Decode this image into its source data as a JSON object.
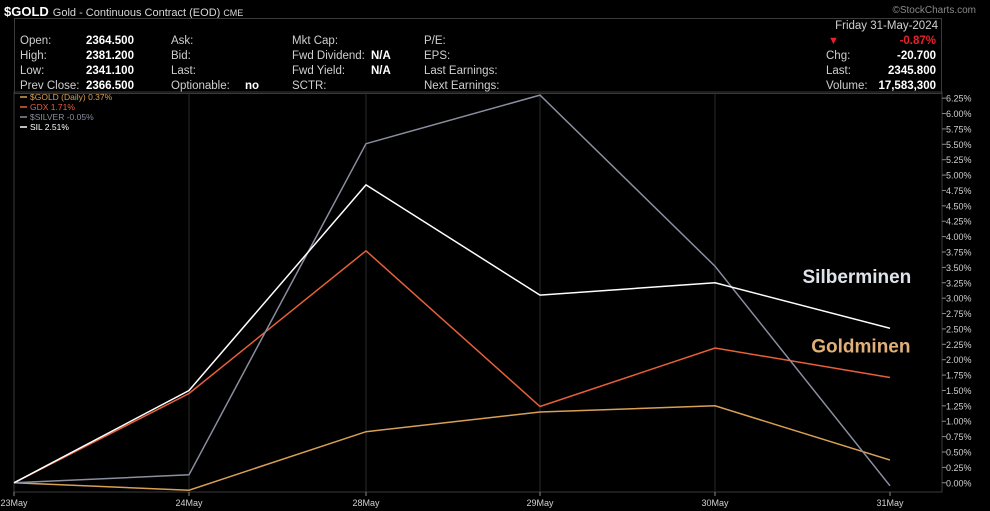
{
  "header": {
    "symbol": "$GOLD",
    "description": "Gold - Continuous Contract (EOD)",
    "exchange": "CME",
    "watermark": "©StockCharts.com"
  },
  "quote": {
    "open_label": "Open:",
    "open": "2364.500",
    "high_label": "High:",
    "high": "2381.200",
    "low_label": "Low:",
    "low": "2341.100",
    "prev_close_label": "Prev Close:",
    "prev_close": "2366.500",
    "ask_label": "Ask:",
    "bid_label": "Bid:",
    "last_label_mid": "Last:",
    "optionable_label": "Optionable:",
    "optionable": "no",
    "mkt_cap_label": "Mkt Cap:",
    "fwd_dividend_label": "Fwd Dividend:",
    "fwd_dividend": "N/A",
    "fwd_yield_label": "Fwd Yield:",
    "fwd_yield": "N/A",
    "sctr_label": "SCTR:",
    "pe_label": "P/E:",
    "eps_label": "EPS:",
    "last_earnings_label": "Last Earnings:",
    "next_earnings_label": "Next Earnings:",
    "date": "Friday  31-May-2024",
    "pct_change": "-0.87%",
    "chg_label": "Chg:",
    "chg": "-20.700",
    "last_label": "Last:",
    "last": "2345.800",
    "volume_label": "Volume:",
    "volume": "17,583,300",
    "colors": {
      "down": "#e8212a"
    }
  },
  "chart_data": {
    "type": "line",
    "x": [
      "23May",
      "24May",
      "28May",
      "29May",
      "30May",
      "31May"
    ],
    "yticks": [
      "0.00%",
      "0.25%",
      "0.50%",
      "0.75%",
      "1.00%",
      "1.25%",
      "1.50%",
      "1.75%",
      "2.00%",
      "2.25%",
      "2.50%",
      "2.75%",
      "3.00%",
      "3.25%",
      "3.50%",
      "3.75%",
      "4.00%",
      "4.25%",
      "4.50%",
      "4.75%",
      "5.00%",
      "5.25%",
      "5.50%",
      "5.75%",
      "6.00%",
      "6.25%"
    ],
    "ylim": [
      -0.15,
      6.35
    ],
    "series": [
      {
        "name": "$GOLD (Daily) 0.37%",
        "color": "#d9a055",
        "values": [
          0.0,
          -0.12,
          0.83,
          1.15,
          1.25,
          0.37
        ]
      },
      {
        "name": "GDX 1.71%",
        "color": "#e8603a",
        "values": [
          0.0,
          1.45,
          3.77,
          1.24,
          2.19,
          1.71
        ]
      },
      {
        "name": "$SILVER -0.05%",
        "color": "#8a8e9e",
        "values": [
          0.0,
          0.13,
          5.51,
          6.3,
          3.52,
          -0.05
        ]
      },
      {
        "name": "SIL 2.51%",
        "color": "#ffffff",
        "values": [
          0.0,
          1.5,
          4.84,
          3.05,
          3.25,
          2.51
        ]
      }
    ],
    "annotations": [
      {
        "text": "Silberminen",
        "color": "#dfe3ea",
        "x_index": 4.5,
        "y": 3.25
      },
      {
        "text": "Goldminen",
        "color": "#e0b078",
        "x_index": 4.55,
        "y": 2.12
      }
    ],
    "grid": true,
    "legend_position": "top-left"
  }
}
